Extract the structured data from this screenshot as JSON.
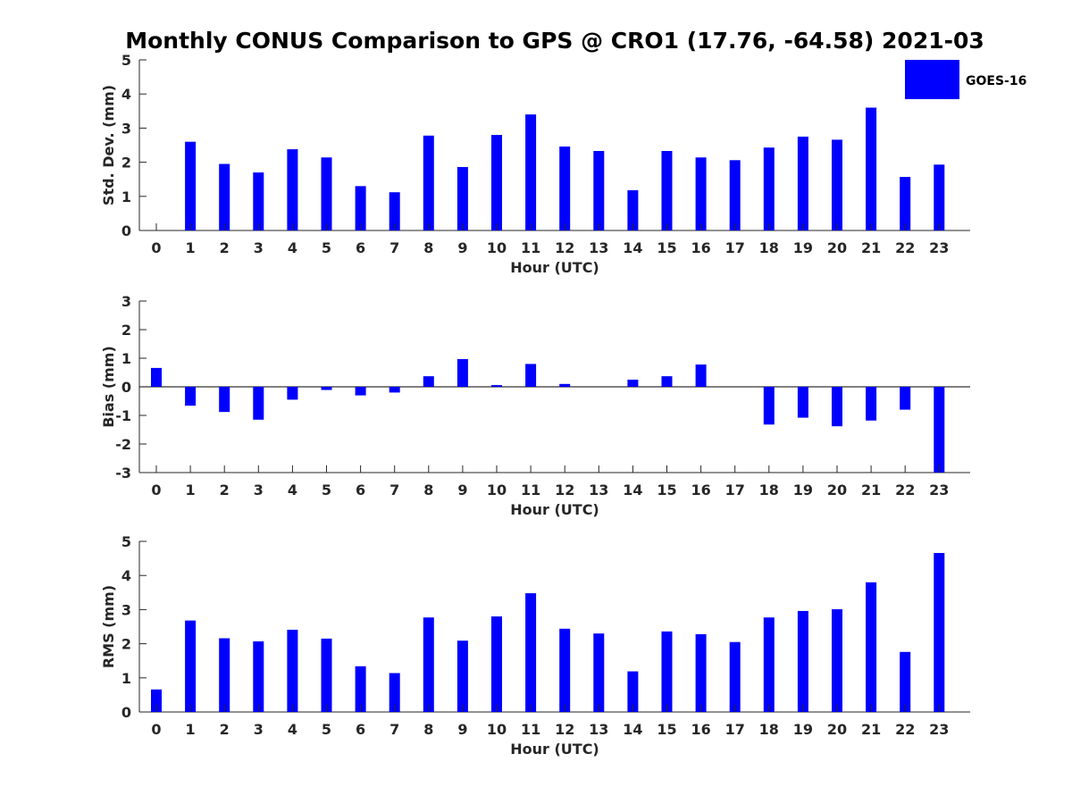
{
  "title": "Monthly CONUS Comparison to GPS @ CRO1 (17.76, -64.58) 2021-03",
  "legend": {
    "label": "GOES-16",
    "color": "#0000ff"
  },
  "bar_color": "#0000ff",
  "chart_data": [
    {
      "type": "bar",
      "name": "stddev",
      "ylabel": "Std. Dev. (mm)",
      "xlabel": "Hour (UTC)",
      "ylim": [
        0,
        5
      ],
      "yticks": [
        0,
        1,
        2,
        3,
        4,
        5
      ],
      "categories": [
        "0",
        "1",
        "2",
        "3",
        "4",
        "5",
        "6",
        "7",
        "8",
        "9",
        "10",
        "11",
        "12",
        "13",
        "14",
        "15",
        "16",
        "17",
        "18",
        "19",
        "20",
        "21",
        "22",
        "23"
      ],
      "values": [
        0,
        2.6,
        1.95,
        1.7,
        2.38,
        2.14,
        1.3,
        1.12,
        2.78,
        1.86,
        2.8,
        3.4,
        2.46,
        2.33,
        1.18,
        2.33,
        2.14,
        2.06,
        2.43,
        2.75,
        2.66,
        3.6,
        1.57,
        1.93
      ],
      "legend": "top-right"
    },
    {
      "type": "bar",
      "name": "bias",
      "ylabel": "Bias (mm)",
      "xlabel": "Hour (UTC)",
      "ylim": [
        -3,
        3
      ],
      "yticks": [
        -3,
        -2,
        -1,
        0,
        1,
        2,
        3
      ],
      "categories": [
        "0",
        "1",
        "2",
        "3",
        "4",
        "5",
        "6",
        "7",
        "8",
        "9",
        "10",
        "11",
        "12",
        "13",
        "14",
        "15",
        "16",
        "17",
        "18",
        "19",
        "20",
        "21",
        "22",
        "23"
      ],
      "values": [
        0.66,
        -0.66,
        -0.88,
        -1.15,
        -0.45,
        -0.11,
        -0.3,
        -0.2,
        0.37,
        0.97,
        0.06,
        0.8,
        0.1,
        0,
        0.25,
        0.37,
        0.78,
        0,
        -1.32,
        -1.08,
        -1.38,
        -1.18,
        -0.8,
        -3.0
      ]
    },
    {
      "type": "bar",
      "name": "rms",
      "ylabel": "RMS (mm)",
      "xlabel": "Hour (UTC)",
      "ylim": [
        0,
        5
      ],
      "yticks": [
        0,
        1,
        2,
        3,
        4,
        5
      ],
      "categories": [
        "0",
        "1",
        "2",
        "3",
        "4",
        "5",
        "6",
        "7",
        "8",
        "9",
        "10",
        "11",
        "12",
        "13",
        "14",
        "15",
        "16",
        "17",
        "18",
        "19",
        "20",
        "21",
        "22",
        "23"
      ],
      "values": [
        0.66,
        2.68,
        2.16,
        2.07,
        2.41,
        2.15,
        1.34,
        1.14,
        2.77,
        2.09,
        2.8,
        3.48,
        2.44,
        2.3,
        1.19,
        2.36,
        2.28,
        2.05,
        2.77,
        2.96,
        3.01,
        3.8,
        1.76,
        4.66
      ]
    }
  ]
}
